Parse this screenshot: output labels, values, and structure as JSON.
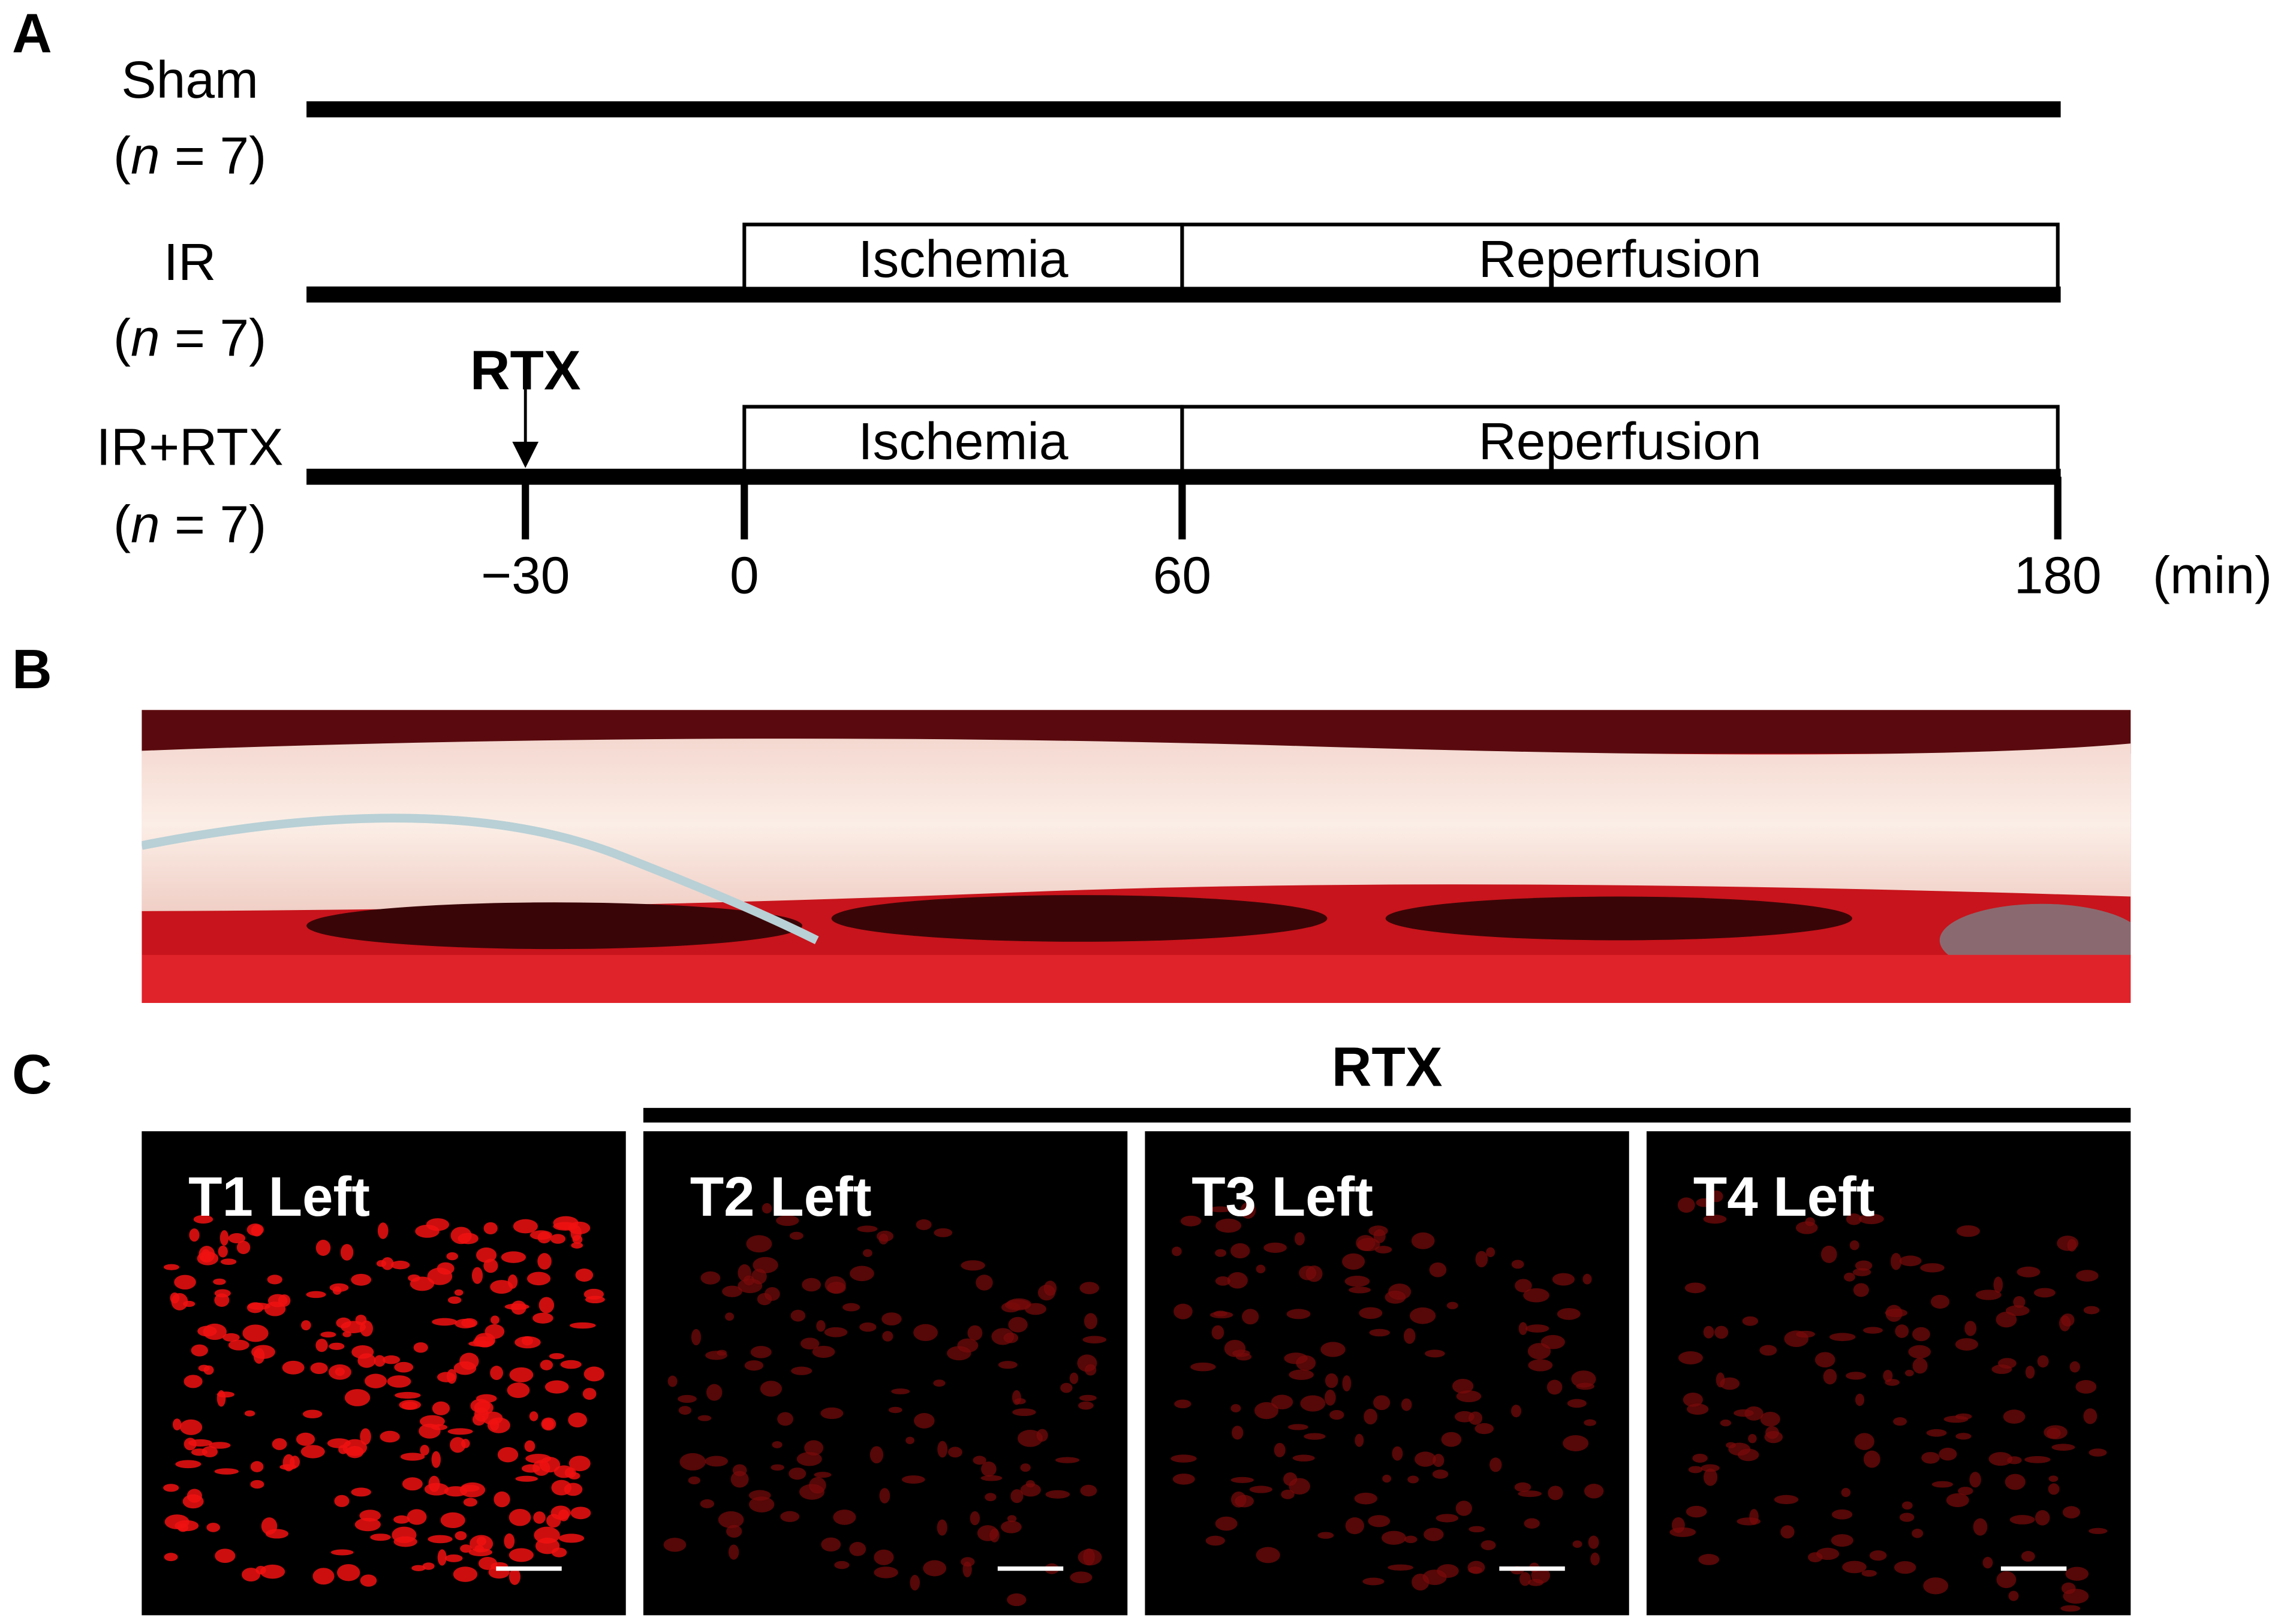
{
  "panel_a": {
    "letter": "A",
    "rows": [
      {
        "label": "Sham",
        "n": [
          "(",
          "n",
          " = 7)"
        ]
      },
      {
        "label": "IR",
        "n": [
          "(",
          "n",
          " = 7)"
        ],
        "phases": [
          "Ischemia",
          "Reperfusion"
        ]
      },
      {
        "label": "IR+RTX",
        "n": [
          "(",
          "n",
          " = 7)"
        ],
        "phases": [
          "Ischemia",
          "Reperfusion"
        ],
        "treatment": "RTX"
      }
    ],
    "timeline": {
      "xlim": [
        -60,
        180
      ],
      "ticks": [
        {
          "value": -30,
          "label": "−30"
        },
        0,
        60,
        180
      ],
      "unit": "(min)"
    }
  },
  "panel_b": {
    "letter": "B"
  },
  "panel_c": {
    "letter": "C",
    "group_label": "RTX",
    "images": [
      "T1 Left",
      "T2 Left",
      "T3 Left",
      "T4 Left"
    ]
  }
}
